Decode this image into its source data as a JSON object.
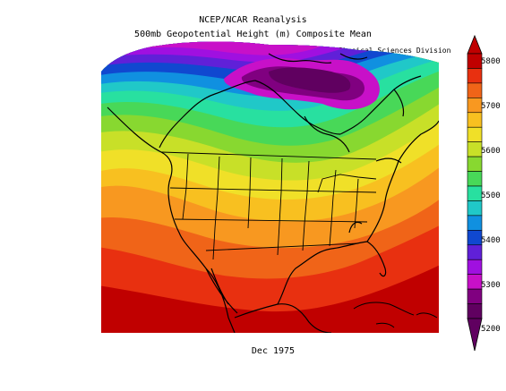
{
  "header": {
    "title": "NCEP/NCAR Reanalysis",
    "subtitle": "500mb Geopotential Height (m) Composite Mean",
    "credit": "NOAA/ESRL Physical Sciences Division"
  },
  "footer": {
    "date_label": "Dec 1975"
  },
  "colorbar": {
    "labels": [
      "5800",
      "5700",
      "5600",
      "5500",
      "5400",
      "5300",
      "5200"
    ],
    "colors": [
      "#c00000",
      "#e83010",
      "#f06418",
      "#f89820",
      "#f8c020",
      "#f0e028",
      "#c8e028",
      "#88d830",
      "#48d858",
      "#28e0a0",
      "#20c8c8",
      "#1090e0",
      "#1048d0",
      "#6020d8",
      "#a010e0",
      "#c810c8",
      "#800080",
      "#600060"
    ]
  }
}
